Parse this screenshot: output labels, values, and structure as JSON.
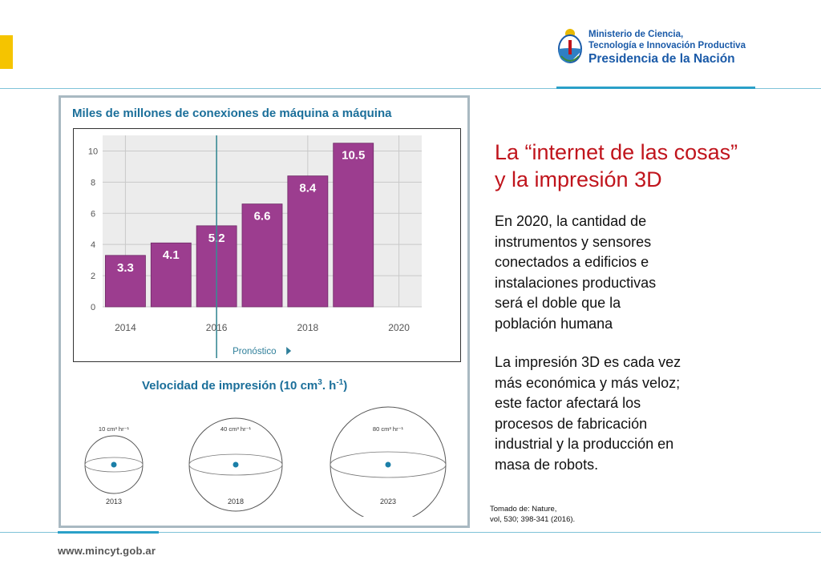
{
  "header": {
    "ministry_line1": "Ministerio de Ciencia,",
    "ministry_line2": "Tecnología e Innovación Productiva",
    "ministry_line3": "Presidencia de la Nación"
  },
  "chart_title": "Miles de millones de conexiones de máquina a máquina",
  "chart_data": {
    "type": "bar",
    "title": "Miles de millones de conexiones de máquina a máquina",
    "x": [
      2014,
      2015,
      2016,
      2017,
      2018,
      2019
    ],
    "values": [
      3.3,
      4.1,
      5.2,
      6.6,
      8.4,
      10.5
    ],
    "value_labels": [
      "3.3",
      "4.1",
      "5.2",
      "6.6",
      "8.4",
      "10.5"
    ],
    "x_ticks": [
      "2014",
      "2016",
      "2018",
      "2020"
    ],
    "y_ticks": [
      "0",
      "2",
      "4",
      "6",
      "8",
      "10"
    ],
    "ylim": [
      0,
      11
    ],
    "xlim": [
      2013.5,
      2020.5
    ],
    "grid": true,
    "forecast_from": 2016,
    "forecast_label": "Pronóstico",
    "bar_color": "#9c3d8f"
  },
  "speed": {
    "title": "Velocidad de impresión (10 cm",
    "title_sup1": "3",
    "title_mid": ". h",
    "title_sup2": "-1",
    "title_end": ")",
    "spheres": [
      {
        "rate": "10 cm³ hr⁻¹",
        "year": "2013"
      },
      {
        "rate": "40 cm³ hr⁻¹",
        "year": "2018"
      },
      {
        "rate": "80 cm³ hr⁻¹",
        "year": "2023"
      }
    ]
  },
  "content": {
    "heading_line1": "La “internet de las cosas”",
    "heading_line2": "y la impresión 3D",
    "para1": [
      "En 2020, la cantidad de",
      "instrumentos y sensores",
      "conectados a edificios e",
      "instalaciones productivas",
      "será el doble que la",
      "población humana"
    ],
    "para2": [
      "La impresión 3D es cada vez",
      "más económica y más veloz;",
      "este factor afectará los",
      "procesos de fabricación",
      "industrial y la producción en",
      "masa de robots."
    ],
    "source_line1": "Tomado de: Nature,",
    "source_line2": "vol, 530; 398-341 (2016)."
  },
  "footer": {
    "url": "www.mincyt.gob.ar"
  },
  "colors": {
    "accent_blue": "#2aa0c8",
    "title_blue": "#1b6f9a",
    "heading_red": "#c0141c",
    "bar_purple": "#9c3d8f",
    "tab_yellow": "#f5c400"
  }
}
